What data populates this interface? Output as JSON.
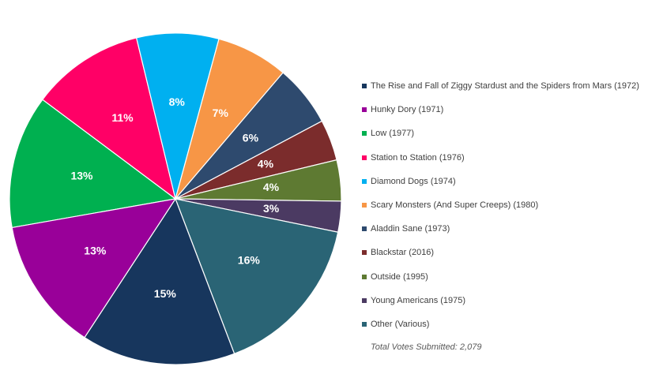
{
  "chart_data": {
    "type": "pie",
    "slices": [
      {
        "label": "The Rise and Fall of Ziggy Stardust and the Spiders from Mars (1972)",
        "value": 13,
        "display": "13%",
        "color": "#00b050"
      },
      {
        "label": "Hunky Dory (1971)",
        "value": 11,
        "display": "11%",
        "color": "#ff0066"
      },
      {
        "label": "Low (1977)",
        "value": 8,
        "display": "8%",
        "color": "#00b0f0"
      },
      {
        "label": "Station to Station (1976)",
        "value": 7,
        "display": "7%",
        "color": "#f79646"
      },
      {
        "label": "Diamond Dogs (1974)",
        "value": 6,
        "display": "6%",
        "color": "#2e4a6e"
      },
      {
        "label": "Scary Monsters (And Super Creeps) (1980)",
        "value": 4,
        "display": "4%",
        "color": "#7b2c2c"
      },
      {
        "label": "Aladdin Sane (1973)",
        "value": 4,
        "display": "4%",
        "color": "#5e7a32"
      },
      {
        "label": "Blackstar (2016)",
        "value": 3,
        "display": "3%",
        "color": "#4b3a62"
      },
      {
        "label": "Other (Various)",
        "value": 16,
        "display": "16%",
        "color": "#2a6475"
      },
      {
        "label": "Young Americans (1975)",
        "value": 15,
        "display": "15%",
        "color": "#17365d"
      },
      {
        "label": "Outside (1995)",
        "value": 13,
        "display": "13%",
        "color": "#990099"
      }
    ],
    "legend": {
      "placement": "right",
      "entries": [
        {
          "label": "The Rise and Fall of Ziggy Stardust and the Spiders from Mars (1972)",
          "color": "#17365d"
        },
        {
          "label": "Hunky Dory (1971)",
          "color": "#990099"
        },
        {
          "label": "Low (1977)",
          "color": "#00b050"
        },
        {
          "label": "Station to Station (1976)",
          "color": "#ff0066"
        },
        {
          "label": "Diamond Dogs (1974)",
          "color": "#00b0f0"
        },
        {
          "label": "Scary Monsters (And Super Creeps) (1980)",
          "color": "#f79646"
        },
        {
          "label": "Aladdin Sane (1973)",
          "color": "#2e4a6e"
        },
        {
          "label": "Blackstar (2016)",
          "color": "#7b2c2c"
        },
        {
          "label": "Outside (1995)",
          "color": "#5e7a32"
        },
        {
          "label": "Young Americans (1975)",
          "color": "#4b3a62"
        },
        {
          "label": "Other (Various)",
          "color": "#2a6475"
        }
      ]
    },
    "annotation": "Total Votes Submitted: 2,079"
  }
}
